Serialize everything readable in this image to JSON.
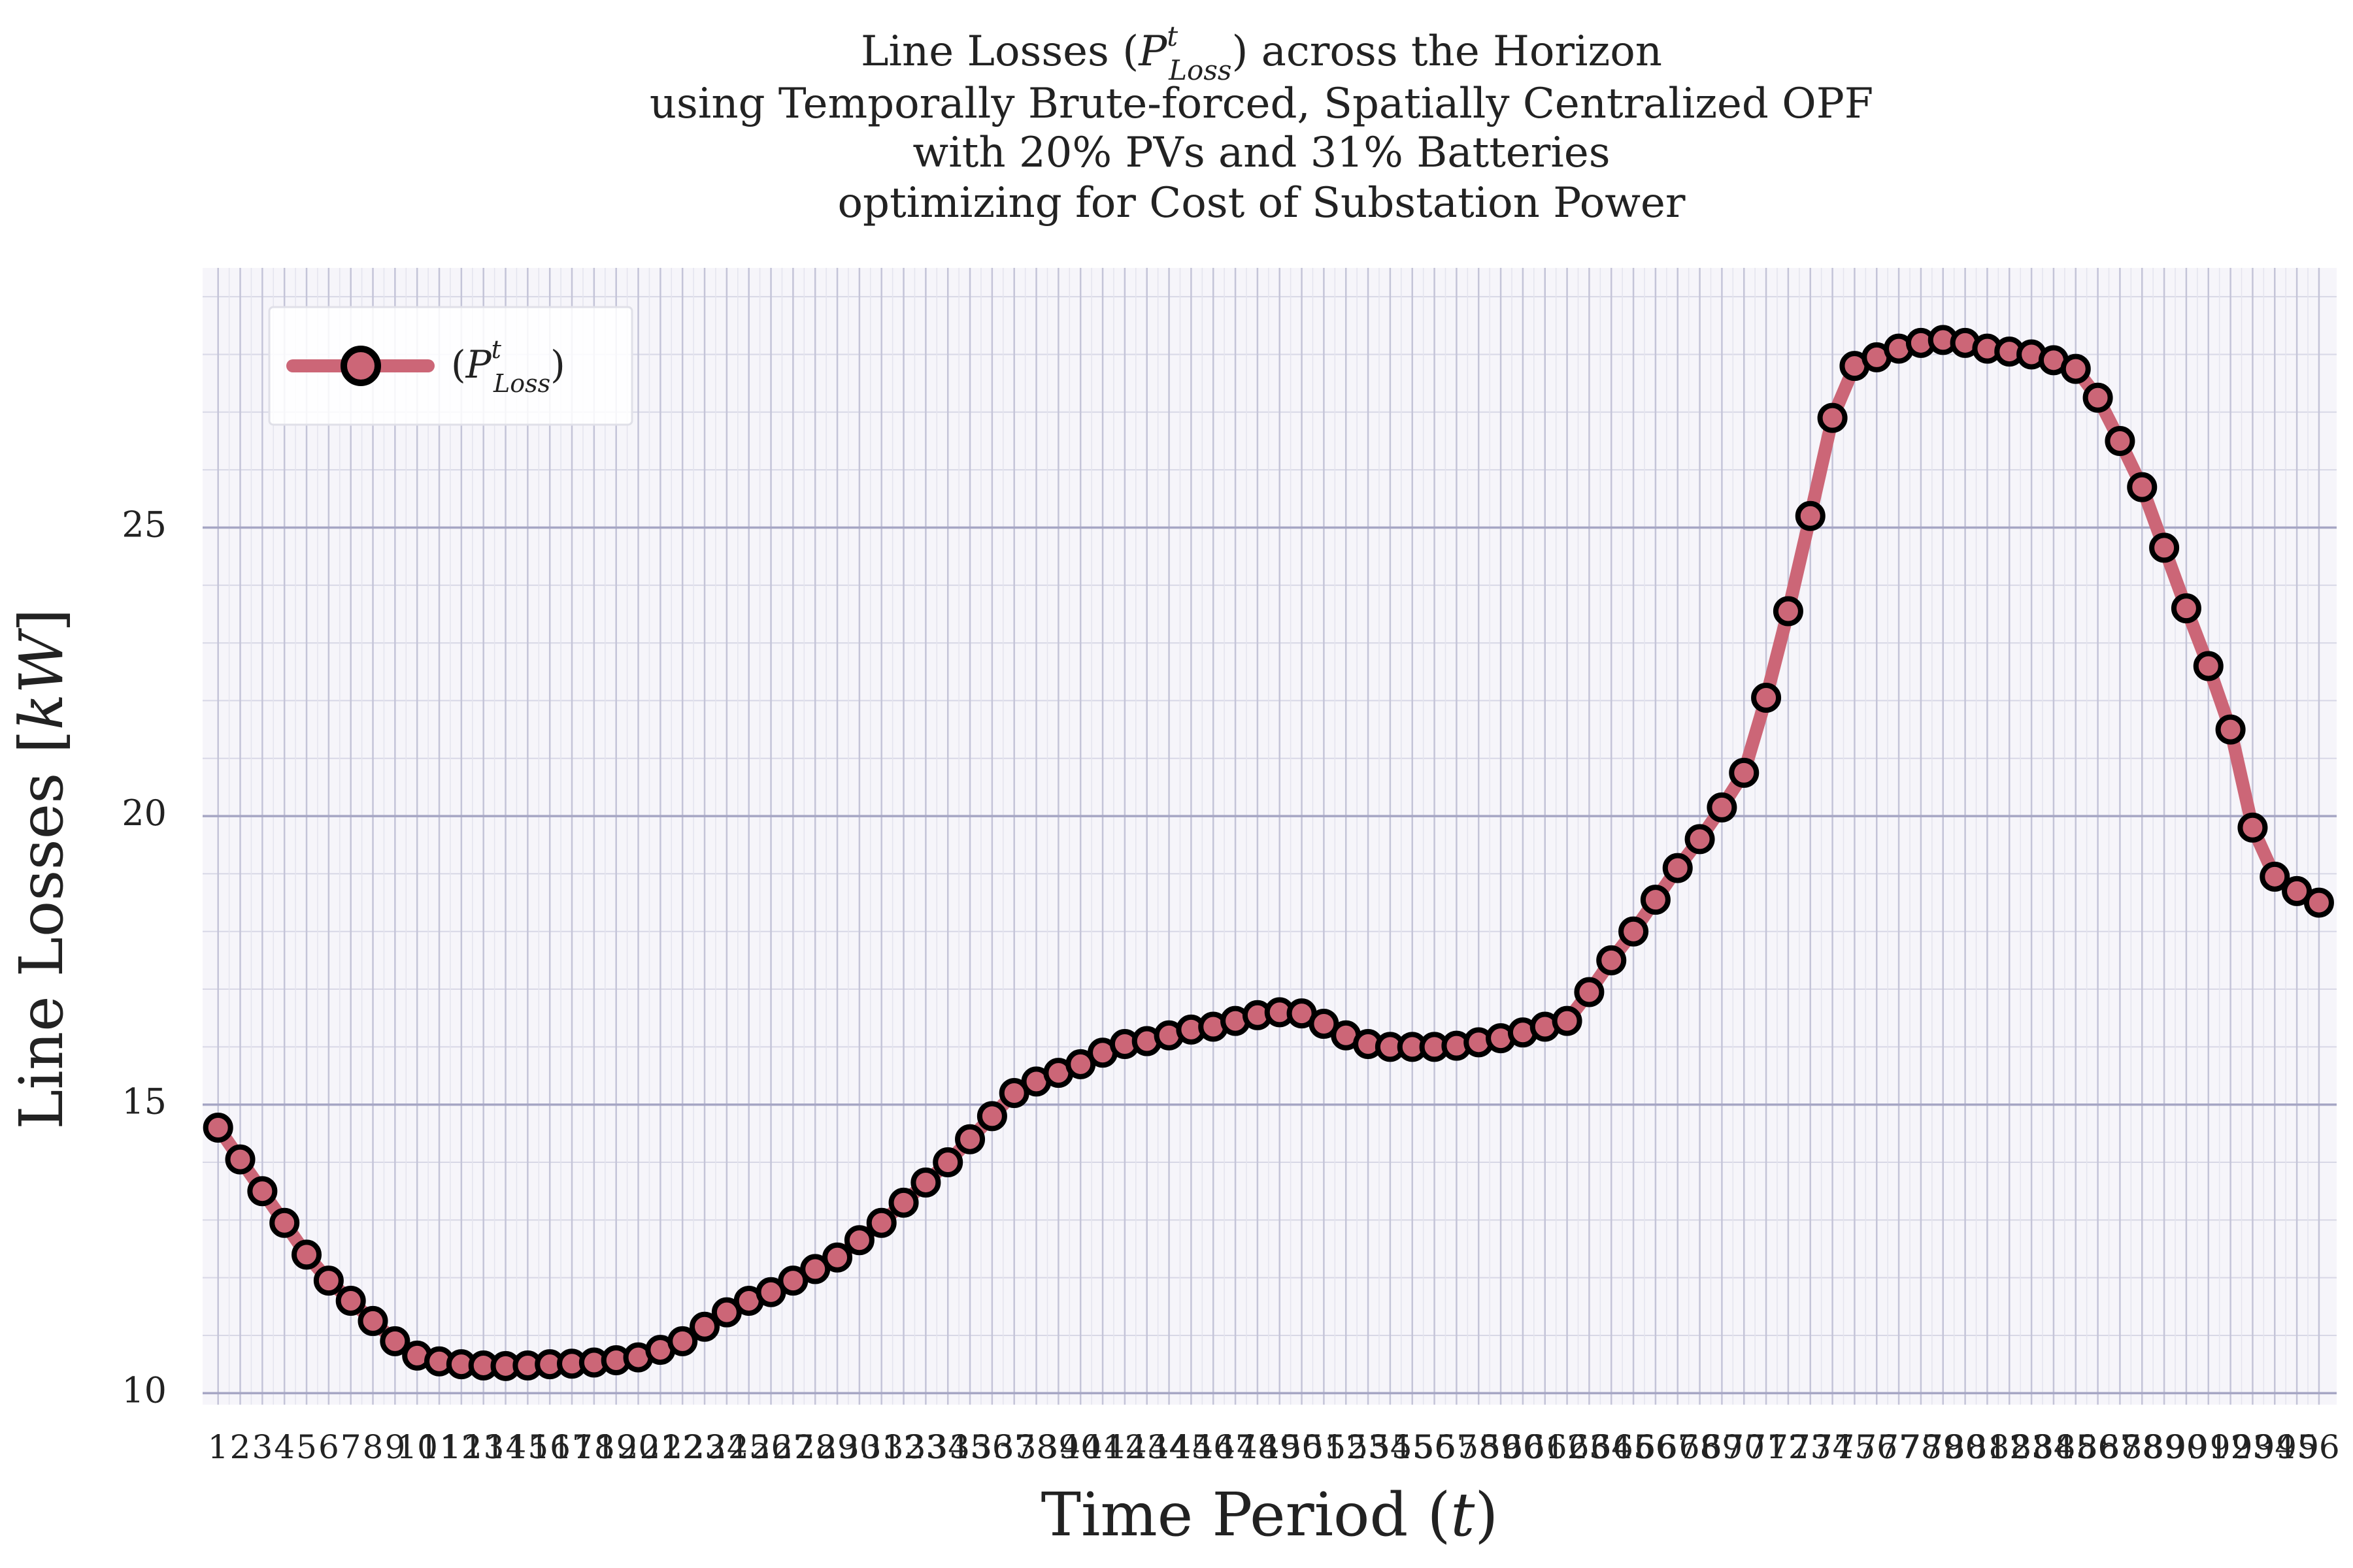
{
  "chart_data": {
    "type": "line",
    "title_lines": [
      "Line Losses (P^t_Loss) across the Horizon",
      "using Temporally Brute-forced, Spatially Centralized OPF",
      "with 20% PVs and 31% Batteries",
      "optimizing for Cost of Substation Power"
    ],
    "xlabel": "Time Period (t)",
    "ylabel": "Line Losses [kW]",
    "x": [
      1,
      2,
      3,
      4,
      5,
      6,
      7,
      8,
      9,
      10,
      11,
      12,
      13,
      14,
      15,
      16,
      17,
      18,
      19,
      20,
      21,
      22,
      23,
      24,
      25,
      26,
      27,
      28,
      29,
      30,
      31,
      32,
      33,
      34,
      35,
      36,
      37,
      38,
      39,
      40,
      41,
      42,
      43,
      44,
      45,
      46,
      47,
      48,
      49,
      50,
      51,
      52,
      53,
      54,
      55,
      56,
      57,
      58,
      59,
      60,
      61,
      62,
      63,
      64,
      65,
      66,
      67,
      68,
      69,
      70,
      71,
      72,
      73,
      74,
      75,
      76,
      77,
      78,
      79,
      80,
      81,
      82,
      83,
      84,
      85,
      86,
      87,
      88,
      89,
      90,
      91,
      92,
      93,
      94,
      95,
      96
    ],
    "x_tick_labels": [
      "1",
      "2",
      "3",
      "4",
      "5",
      "6",
      "7",
      "8",
      "9",
      "10",
      "11",
      "12",
      "13",
      "14",
      "15",
      "16",
      "17",
      "18",
      "19",
      "20",
      "21",
      "22",
      "23",
      "24",
      "25",
      "26",
      "27",
      "28",
      "29",
      "30",
      "31",
      "32",
      "33",
      "34",
      "35",
      "36",
      "37",
      "38",
      "39",
      "40",
      "41",
      "42",
      "43",
      "44",
      "45",
      "46",
      "47",
      "48",
      "49",
      "50",
      "51",
      "52",
      "53",
      "54",
      "55",
      "56",
      "57",
      "58",
      "59",
      "60",
      "61",
      "62",
      "63",
      "64",
      "65",
      "66",
      "67",
      "68",
      "69",
      "70",
      "71",
      "72",
      "73",
      "74",
      "75",
      "76",
      "77",
      "78",
      "79",
      "80",
      "81",
      "82",
      "83",
      "84",
      "85",
      "86",
      "87",
      "88",
      "89",
      "90",
      "91",
      "92",
      "93",
      "94",
      "95",
      "96"
    ],
    "xlim": [
      0.3,
      96.8
    ],
    "ylim": [
      9.8,
      29.5
    ],
    "y_ticks": [
      10,
      15,
      20,
      25
    ],
    "y_tick_labels": [
      "10",
      "15",
      "20",
      "25"
    ],
    "grid": true,
    "legend_placement": "top-left",
    "series": [
      {
        "name": "(P^t_Loss)",
        "color": "#cc6677",
        "marker_edge_color": "#000000",
        "values": [
          14.6,
          14.05,
          13.5,
          12.95,
          12.4,
          11.95,
          11.6,
          11.25,
          10.9,
          10.65,
          10.55,
          10.5,
          10.48,
          10.47,
          10.48,
          10.5,
          10.51,
          10.53,
          10.57,
          10.62,
          10.75,
          10.9,
          11.15,
          11.4,
          11.6,
          11.75,
          11.95,
          12.15,
          12.35,
          12.65,
          12.95,
          13.3,
          13.65,
          14.0,
          14.4,
          14.8,
          15.2,
          15.4,
          15.55,
          15.7,
          15.9,
          16.05,
          16.1,
          16.2,
          16.3,
          16.35,
          16.45,
          16.55,
          16.6,
          16.58,
          16.4,
          16.2,
          16.05,
          16.0,
          16.0,
          16.0,
          16.02,
          16.08,
          16.15,
          16.25,
          16.35,
          16.45,
          16.95,
          17.5,
          18.0,
          18.55,
          19.1,
          19.6,
          20.15,
          20.75,
          22.05,
          23.55,
          25.2,
          26.9,
          27.8,
          27.95,
          28.1,
          28.2,
          28.25,
          28.2,
          28.1,
          28.05,
          28.0,
          27.9,
          27.75,
          27.25,
          26.5,
          25.7,
          24.65,
          23.6,
          22.6,
          21.5,
          19.8,
          18.95,
          18.7,
          18.5
        ]
      }
    ]
  }
}
